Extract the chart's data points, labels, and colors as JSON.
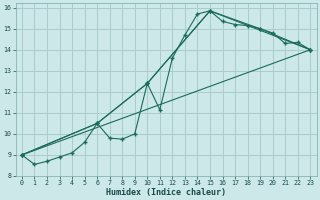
{
  "title": "",
  "xlabel": "Humidex (Indice chaleur)",
  "bg_color": "#cce8e8",
  "grid_color": "#aacccc",
  "line_color": "#1a6b5a",
  "xlim": [
    -0.5,
    23.5
  ],
  "ylim": [
    8,
    16.2
  ],
  "xticks": [
    0,
    1,
    2,
    3,
    4,
    5,
    6,
    7,
    8,
    9,
    10,
    11,
    12,
    13,
    14,
    15,
    16,
    17,
    18,
    19,
    20,
    21,
    22,
    23
  ],
  "yticks": [
    8,
    9,
    10,
    11,
    12,
    13,
    14,
    15,
    16
  ],
  "line1_x": [
    0,
    1,
    2,
    3,
    4,
    5,
    6,
    7,
    8,
    9,
    10,
    11,
    12,
    13,
    14,
    15,
    16,
    17,
    18,
    19,
    20,
    21,
    22,
    23
  ],
  "line1_y": [
    9.0,
    8.55,
    8.7,
    8.9,
    9.1,
    9.6,
    10.5,
    9.8,
    9.75,
    10.0,
    12.4,
    11.15,
    13.6,
    14.7,
    15.7,
    15.85,
    15.35,
    15.2,
    15.15,
    15.0,
    14.8,
    14.3,
    14.35,
    14.0
  ],
  "line2_x": [
    0,
    6,
    10,
    15,
    19,
    23
  ],
  "line2_y": [
    9.0,
    10.5,
    12.4,
    15.85,
    15.0,
    14.0
  ],
  "line3_x": [
    0,
    6,
    10,
    15,
    23
  ],
  "line3_y": [
    9.0,
    10.5,
    12.4,
    15.85,
    14.0
  ],
  "line4_x": [
    0,
    23
  ],
  "line4_y": [
    9.0,
    14.0
  ]
}
